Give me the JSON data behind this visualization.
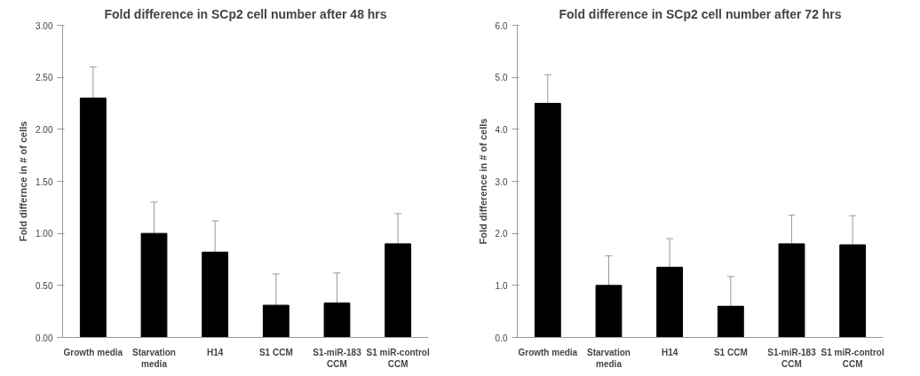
{
  "chart_data": [
    {
      "type": "bar",
      "title": "Fold difference in SCp2 cell number after 48 hrs",
      "ylabel": "Fold differnce in # of cells",
      "categories": [
        "Growth media",
        "Starvation\nmedia",
        "H14",
        "S1 CCM",
        "S1-miR-183\nCCM",
        "S1 miR-control\nCCM"
      ],
      "values": [
        2.3,
        1.0,
        0.82,
        0.31,
        0.33,
        0.9
      ],
      "errors": [
        [
          2.3,
          2.6
        ],
        [
          1.0,
          1.3
        ],
        [
          0.82,
          1.12
        ],
        [
          0.31,
          0.61
        ],
        [
          0.33,
          0.62
        ],
        [
          0.9,
          1.19
        ]
      ],
      "color": "#000000",
      "ylim": [
        0,
        3
      ],
      "yticks": [
        {
          "value": 0,
          "label": "0.00"
        },
        {
          "value": 0.5,
          "label": "0.50"
        },
        {
          "value": 1,
          "label": "1.00"
        },
        {
          "value": 1.5,
          "label": "1.50"
        },
        {
          "value": 2,
          "label": "2.00"
        },
        {
          "value": 2.5,
          "label": "2.50"
        },
        {
          "value": 3,
          "label": "3.00"
        }
      ],
      "grid": false
    },
    {
      "type": "bar",
      "title": "Fold difference in SCp2 cell number after 72 hrs",
      "ylabel": "Fold difference in # of cells",
      "categories": [
        "Growth media",
        "Starvation\nmedia",
        "H14",
        "S1 CCM",
        "S1-miR-183\nCCM",
        "S1 miR-control\nCCM"
      ],
      "values": [
        4.5,
        1.0,
        1.35,
        0.6,
        1.8,
        1.78
      ],
      "errors": [
        [
          4.5,
          5.05
        ],
        [
          1.0,
          1.57
        ],
        [
          1.35,
          1.9
        ],
        [
          0.6,
          1.17
        ],
        [
          1.8,
          2.35
        ],
        [
          1.78,
          2.34
        ]
      ],
      "color": "#000000",
      "ylim": [
        0,
        6
      ],
      "yticks": [
        {
          "value": 0,
          "label": "0.0"
        },
        {
          "value": 1,
          "label": "1.0"
        },
        {
          "value": 2,
          "label": "2.0"
        },
        {
          "value": 3,
          "label": "3.0"
        },
        {
          "value": 4,
          "label": "4.0"
        },
        {
          "value": 5,
          "label": "5.0"
        },
        {
          "value": 6,
          "label": "6.0"
        }
      ],
      "grid": false
    }
  ]
}
